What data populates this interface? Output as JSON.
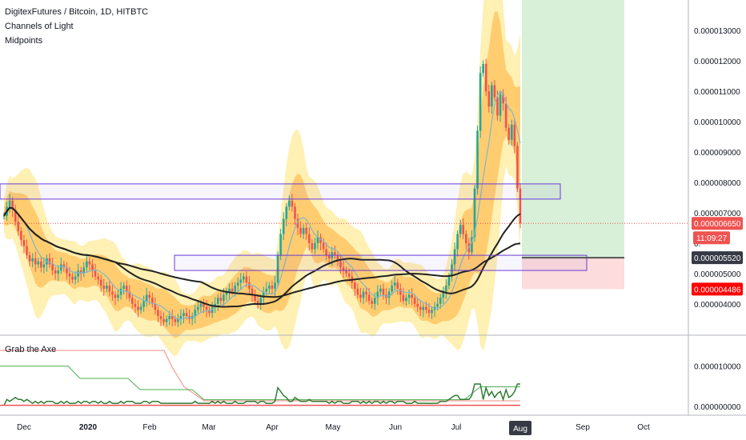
{
  "header": {
    "symbol": "DigitexFutures / Bitcoin, 1D, HITBTC",
    "indicator_1": "Channels of Light",
    "indicator_2": "Midpoints"
  },
  "oscillator": {
    "title": "Grab the Axe"
  },
  "colors": {
    "up": "#26a69a",
    "down": "#ef5350",
    "channel_outer": "#fff0b3",
    "channel_inner": "#ffc25a",
    "midline": "#7fb8c9",
    "ma": "#222222",
    "zone": "#6a3bd6",
    "target": "#d8f0d8",
    "stop": "#fcdcdc",
    "price_line": "#ef5350"
  },
  "chart_data": {
    "type": "candlestick",
    "title": "DigitexFutures / Bitcoin, 1D, HITBTC",
    "x_axis": {
      "tick_labels": [
        "Dec",
        "2020",
        "Feb",
        "Mar",
        "Apr",
        "May",
        "Jun",
        "Jul",
        "Aug",
        "Sep",
        "Oct"
      ]
    },
    "y_axis": {
      "tick_labels": [
        "0.000013000",
        "0.000012000",
        "0.000011000",
        "0.000010000",
        "0.000009000",
        "0.000008000",
        "0.000007000",
        "0.000005000",
        "0.000004000"
      ],
      "range": [
        3.1e-06,
        1.39e-05
      ]
    },
    "price_tags": {
      "last_price": "0.000006650",
      "countdown": "11:09:27",
      "ma_value": "0.000005520",
      "stop_level": "0.000004486"
    },
    "oscillator_axis": {
      "tick_labels": [
        "0.000010000",
        "0.000000000"
      ]
    },
    "series": [
      {
        "name": "Close",
        "values": [
          6.9,
          7.2,
          7.4,
          7.1,
          6.7,
          6.4,
          6.1,
          5.9,
          5.6,
          5.4,
          5.5,
          5.3,
          5.4,
          5.2,
          5.3,
          5.5,
          5.3,
          5.1,
          5.0,
          5.1,
          5.3,
          5.2,
          5.0,
          4.9,
          4.8,
          4.9,
          5.1,
          5.0,
          5.2,
          5.4,
          5.3,
          5.1,
          4.9,
          4.8,
          4.6,
          4.5,
          4.6,
          4.4,
          4.3,
          4.2,
          4.3,
          4.5,
          4.6,
          4.4,
          4.2,
          4.0,
          3.9,
          3.8,
          3.9,
          4.1,
          4.3,
          4.2,
          4.0,
          3.8,
          3.6,
          3.5,
          3.4,
          3.5,
          3.6,
          3.5,
          3.4,
          3.5,
          3.6,
          3.7,
          3.6,
          3.5,
          3.6,
          3.8,
          3.9,
          4.0,
          3.9,
          3.8,
          3.7,
          3.9,
          4.0,
          4.2,
          4.1,
          4.3,
          4.4,
          4.5,
          4.4,
          4.6,
          4.7,
          4.8,
          4.9,
          4.7,
          4.5,
          4.3,
          4.1,
          4.0,
          4.2,
          4.4,
          4.5,
          4.6,
          4.5,
          4.7,
          5.6,
          6.3,
          6.8,
          7.2,
          7.4,
          7.2,
          6.8,
          6.5,
          6.3,
          6.5,
          6.3,
          6.0,
          5.8,
          6.0,
          6.2,
          6.0,
          5.8,
          5.6,
          5.5,
          5.7,
          5.6,
          5.4,
          5.2,
          5.1,
          5.0,
          4.9,
          4.7,
          4.5,
          4.3,
          4.2,
          4.4,
          4.3,
          4.1,
          4.0,
          4.2,
          4.4,
          4.5,
          4.3,
          4.2,
          4.4,
          4.6,
          4.7,
          4.5,
          4.3,
          4.1,
          4.2,
          4.3,
          4.2,
          4.0,
          3.9,
          3.8,
          3.9,
          3.8,
          3.7,
          3.8,
          3.9,
          4.0,
          4.2,
          4.4,
          4.6,
          4.9,
          5.3,
          5.8,
          6.3,
          6.6,
          6.3,
          6.0,
          5.7,
          6.2,
          7.8,
          9.7,
          11.6,
          11.9,
          11.0,
          10.5,
          11.2,
          10.8,
          10.2,
          10.9,
          10.6,
          9.8,
          9.4,
          9.9,
          9.2,
          7.8,
          6.65
        ]
      }
    ]
  }
}
